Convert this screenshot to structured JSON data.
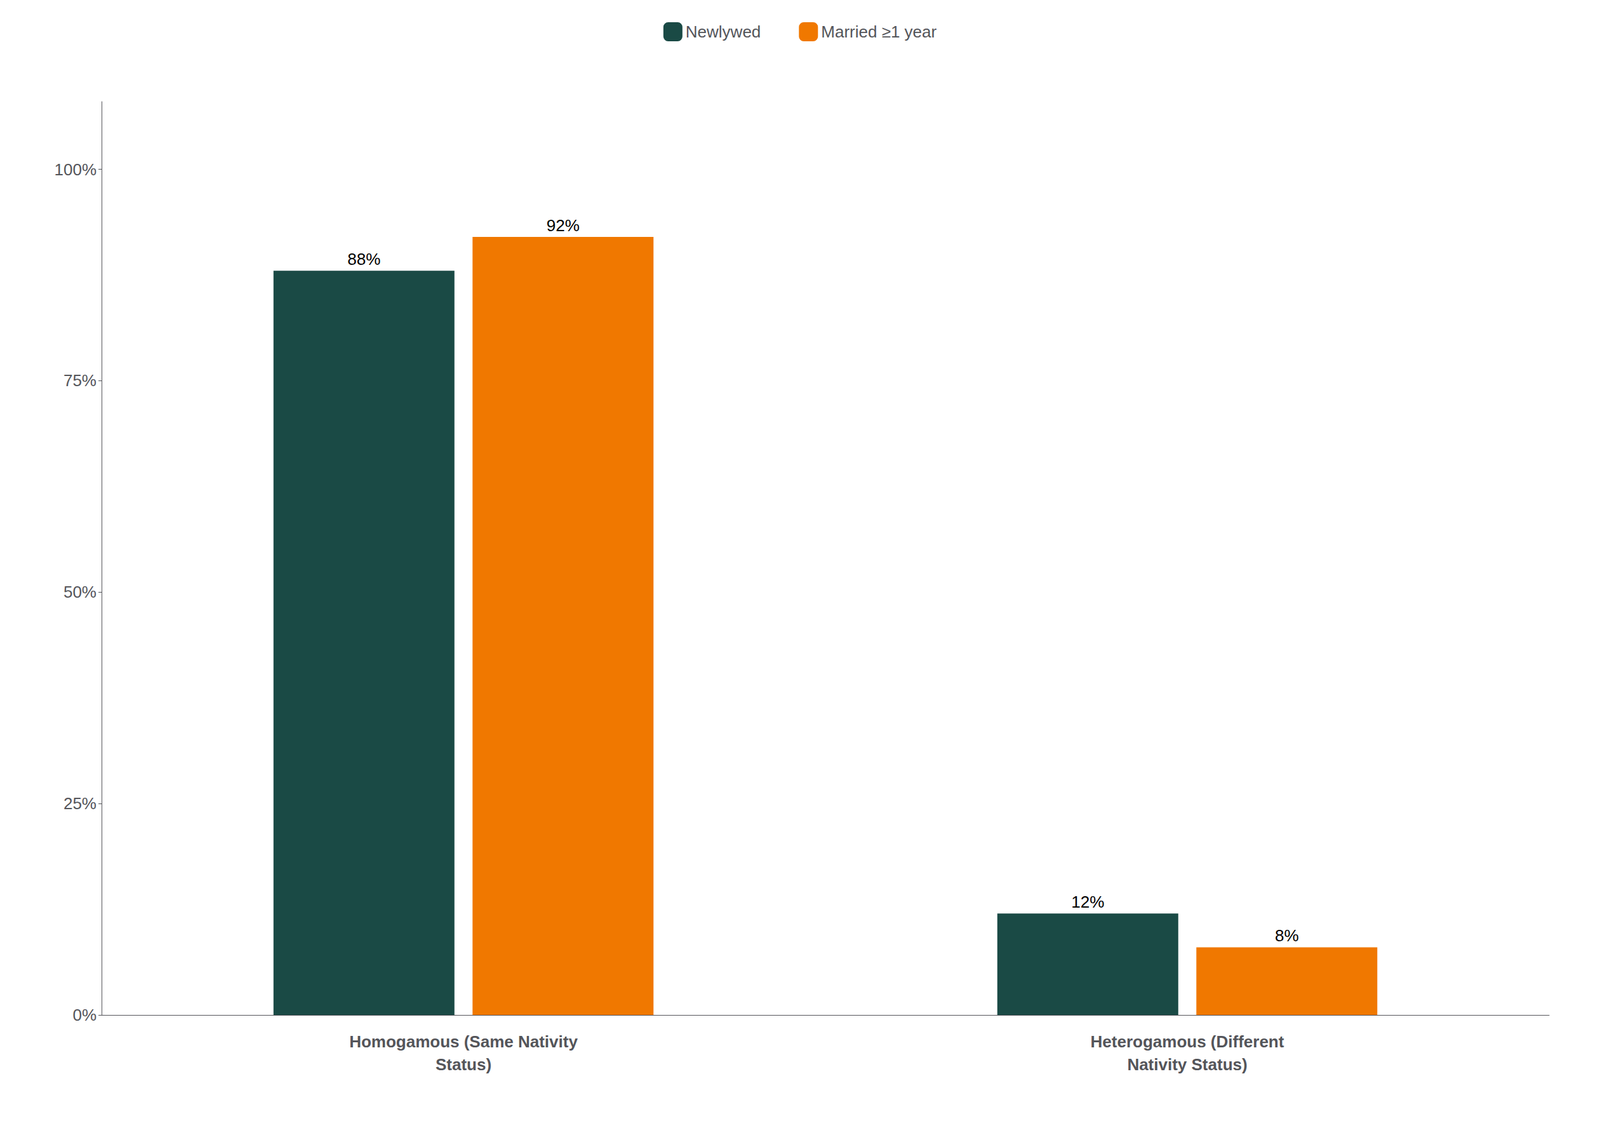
{
  "chart_data": {
    "type": "bar",
    "categories": [
      "Homogamous (Same Nativity\nStatus)",
      "Heterogamous (Different\nNativity Status)"
    ],
    "series": [
      {
        "name": "Newlywed",
        "color": "#1a4a45",
        "values": [
          88,
          12
        ],
        "value_labels": [
          "88%",
          "12%"
        ]
      },
      {
        "name": "Married ≥1 year",
        "color": "#f07800",
        "values": [
          92,
          8
        ],
        "value_labels": [
          "92%",
          "8%"
        ]
      }
    ],
    "ylim": [
      0,
      108
    ],
    "yticks": [
      {
        "value": 0,
        "label": "0%"
      },
      {
        "value": 25,
        "label": "25%"
      },
      {
        "value": 50,
        "label": "50%"
      },
      {
        "value": 75,
        "label": "75%"
      },
      {
        "value": 100,
        "label": "100%"
      }
    ],
    "grid": false,
    "legend": "top",
    "data_labels": true
  }
}
